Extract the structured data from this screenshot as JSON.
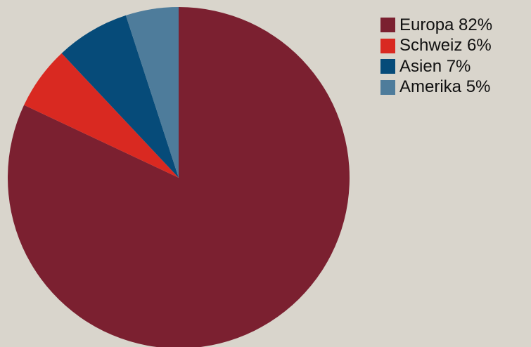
{
  "chart_data": {
    "type": "pie",
    "slices": [
      {
        "label": "Europa 82%",
        "value": 82,
        "color": "#7b2030"
      },
      {
        "label": "Schweiz 6%",
        "value": 6,
        "color": "#d92921"
      },
      {
        "label": "Asien 7%",
        "value": 7,
        "color": "#064b79"
      },
      {
        "label": "Amerika 5%",
        "value": 5,
        "color": "#4e7c9b"
      }
    ],
    "start_angle": "12 o'clock",
    "direction": "clockwise",
    "legend_position": "right",
    "background": "#d9d5cc"
  }
}
